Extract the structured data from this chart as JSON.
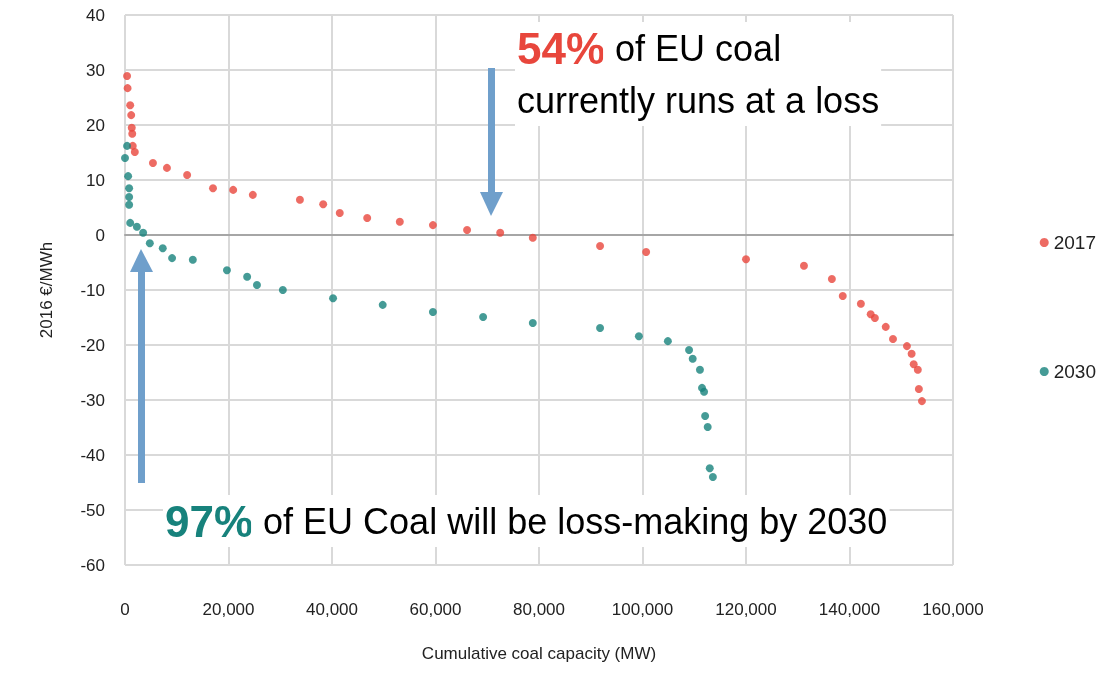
{
  "chart_data": {
    "type": "scatter",
    "xlabel": "Cumulative coal capacity (MW)",
    "ylabel": "2016 €/MWh",
    "xlim": [
      0,
      160000
    ],
    "xticks": [
      0,
      {
        "value": 20000,
        "label": "20,000"
      },
      {
        "value": 40000,
        "label": "40,000"
      },
      {
        "value": 60000,
        "label": "60,000"
      },
      {
        "value": 80000,
        "label": "80,000"
      },
      {
        "value": 100000,
        "label": "100,000"
      },
      {
        "value": 120000,
        "label": "120,000"
      },
      {
        "value": 140000,
        "label": "140,000"
      },
      {
        "value": 160000,
        "label": "160,000"
      }
    ],
    "ylim": [
      -60,
      40
    ],
    "yticks": [
      -60,
      -50,
      -40,
      -30,
      -20,
      -10,
      0,
      10,
      20,
      30,
      40
    ],
    "grid": true,
    "legend": "right",
    "marker": "circle",
    "series": [
      {
        "name": "2017",
        "color": "#e8463c",
        "x": [
          400,
          500,
          1000,
          1200,
          1300,
          1400,
          1500,
          1900,
          5400,
          8100,
          12000,
          17000,
          20900,
          24700,
          33800,
          38300,
          41500,
          46800,
          53100,
          59500,
          66100,
          72500,
          78800,
          91800,
          100700,
          120000,
          131200,
          136600,
          138700,
          142200,
          144100,
          144900,
          147000,
          148400,
          151100,
          152000,
          152400,
          153200,
          153400,
          154000
        ],
        "values": [
          28.9,
          26.7,
          23.6,
          21.8,
          19.5,
          18.4,
          16.2,
          15.1,
          13.1,
          12.2,
          10.9,
          8.5,
          8.2,
          7.3,
          6.4,
          5.6,
          4.0,
          3.1,
          2.4,
          1.8,
          0.9,
          0.4,
          -0.5,
          -2.0,
          -3.1,
          -4.4,
          -5.6,
          -8.0,
          -11.1,
          -12.5,
          -14.4,
          -15.1,
          -16.7,
          -18.9,
          -20.2,
          -21.6,
          -23.5,
          -24.5,
          -28.0,
          -30.2
        ]
      },
      {
        "name": "2030",
        "color": "#17827c",
        "x": [
          0,
          400,
          600,
          800,
          800,
          800,
          1000,
          2300,
          3500,
          4800,
          7300,
          9100,
          13100,
          19700,
          23600,
          25500,
          30500,
          40200,
          49800,
          59500,
          69200,
          78800,
          91800,
          99300,
          104900,
          109000,
          109700,
          111100,
          111500,
          111900,
          112100,
          112600,
          113000,
          113600
        ],
        "values": [
          14.0,
          16.2,
          10.7,
          8.5,
          6.9,
          5.5,
          2.2,
          1.5,
          0.4,
          -1.5,
          -2.4,
          -4.2,
          -4.5,
          -6.4,
          -7.6,
          -9.1,
          -10.0,
          -11.5,
          -12.7,
          -14.0,
          -14.9,
          -16.0,
          -16.9,
          -18.4,
          -19.3,
          -20.9,
          -22.5,
          -24.5,
          -27.8,
          -28.5,
          -32.9,
          -34.9,
          -42.4,
          -44.0
        ]
      }
    ],
    "annotations": [
      "54% of EU coal\ncurrently runs at a loss",
      "97% of EU Coal will be loss-making by 2030"
    ]
  }
}
